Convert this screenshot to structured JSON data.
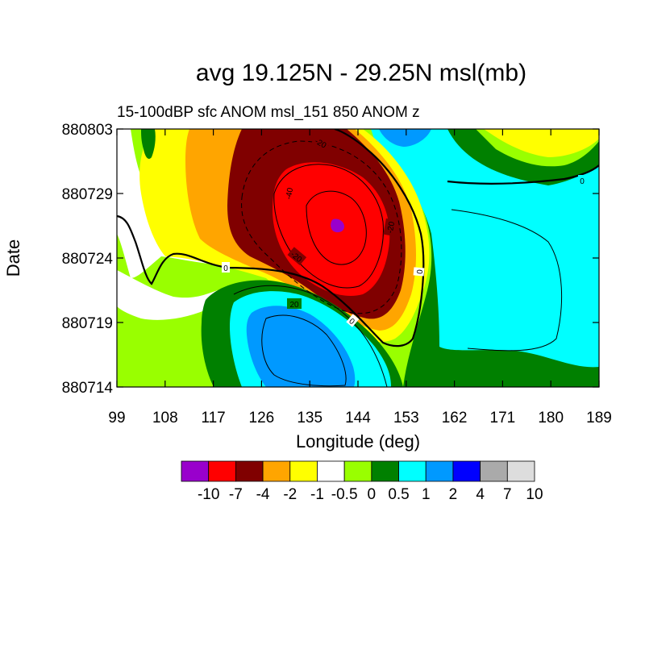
{
  "chart_data": {
    "type": "heatmap",
    "title": "avg 19.125N - 29.25N msl(mb)",
    "subtitle": "15-100dBP sfc ANOM msl_151 850 ANOM z",
    "xlabel": "Longitude (deg)",
    "ylabel": "Date",
    "x_ticks": [
      "99",
      "108",
      "117",
      "126",
      "135",
      "144",
      "153",
      "162",
      "171",
      "180",
      "189"
    ],
    "y_ticks": [
      "880714",
      "880719",
      "880724",
      "880729",
      "880803"
    ],
    "xlim": [
      99,
      189
    ],
    "ylim": [
      "880714",
      "880803"
    ],
    "colorbar": {
      "boundaries": [
        "-10",
        "-7",
        "-4",
        "-2",
        "-1",
        "-0.5",
        "0",
        "0.5",
        "1",
        "2",
        "4",
        "7",
        "10"
      ],
      "colors": [
        "#9900cc",
        "#ff0000",
        "#800000",
        "#ffa500",
        "#ffff00",
        "#ffffff",
        "#99ff00",
        "#008000",
        "#00ffff",
        "#0099ff",
        "#0000ff",
        "#aaaaaa",
        "#dddddd"
      ]
    },
    "contour_labels": [
      "-40",
      "-20",
      "-20",
      "-20",
      "0",
      "0",
      "0",
      "20",
      "0"
    ]
  }
}
